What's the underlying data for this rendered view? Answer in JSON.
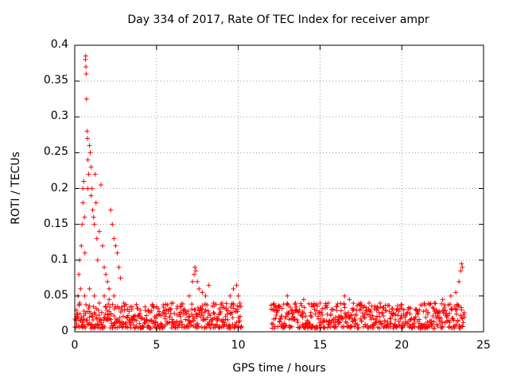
{
  "chart_data": {
    "type": "scatter",
    "title": "Day 334 of 2017, Rate Of TEC Index for receiver ampr",
    "xlabel": "GPS time / hours",
    "ylabel": "ROTI / TECUs",
    "xlim": [
      0,
      25
    ],
    "ylim": [
      0,
      0.4
    ],
    "xticks": [
      "0",
      "5",
      "10",
      "15",
      "20",
      "25"
    ],
    "yticks": [
      "0",
      "0.05",
      "0.1",
      "0.15",
      "0.2",
      "0.25",
      "0.3",
      "0.35",
      "0.4"
    ],
    "grid": true,
    "marker": "plus",
    "color": "#ff0000",
    "series": [
      {
        "points": [
          [
            0.1,
            0.03
          ],
          [
            0.2,
            0.05
          ],
          [
            0.25,
            0.08
          ],
          [
            0.3,
            0.1
          ],
          [
            0.35,
            0.06
          ],
          [
            0.4,
            0.12
          ],
          [
            0.45,
            0.15
          ],
          [
            0.5,
            0.2
          ],
          [
            0.5,
            0.18
          ],
          [
            0.55,
            0.21
          ],
          [
            0.6,
            0.16
          ],
          [
            0.62,
            0.11
          ],
          [
            0.65,
            0.38
          ],
          [
            0.67,
            0.385
          ],
          [
            0.68,
            0.37
          ],
          [
            0.7,
            0.36
          ],
          [
            0.72,
            0.325
          ],
          [
            0.75,
            0.28
          ],
          [
            0.78,
            0.27
          ],
          [
            0.8,
            0.24
          ],
          [
            0.8,
            0.2
          ],
          [
            0.85,
            0.22
          ],
          [
            0.9,
            0.26
          ],
          [
            0.95,
            0.25
          ],
          [
            1.0,
            0.23
          ],
          [
            1.0,
            0.19
          ],
          [
            1.05,
            0.2
          ],
          [
            1.1,
            0.17
          ],
          [
            1.15,
            0.16
          ],
          [
            1.2,
            0.15
          ],
          [
            1.25,
            0.22
          ],
          [
            1.3,
            0.18
          ],
          [
            1.35,
            0.13
          ],
          [
            1.4,
            0.1
          ],
          [
            1.5,
            0.14
          ],
          [
            1.6,
            0.205
          ],
          [
            1.7,
            0.12
          ],
          [
            1.8,
            0.09
          ],
          [
            1.9,
            0.08
          ],
          [
            2.0,
            0.07
          ],
          [
            2.1,
            0.06
          ],
          [
            2.2,
            0.17
          ],
          [
            2.3,
            0.15
          ],
          [
            2.4,
            0.13
          ],
          [
            2.5,
            0.12
          ],
          [
            2.6,
            0.11
          ],
          [
            2.7,
            0.09
          ],
          [
            2.8,
            0.075
          ],
          [
            0.3,
            0.04
          ],
          [
            0.6,
            0.05
          ],
          [
            0.9,
            0.06
          ],
          [
            1.2,
            0.05
          ],
          [
            1.5,
            0.04
          ],
          [
            1.8,
            0.05
          ],
          [
            2.1,
            0.045
          ],
          [
            2.4,
            0.05
          ],
          [
            3.0,
            0.04
          ],
          [
            3.5,
            0.035
          ],
          [
            4.0,
            0.03
          ],
          [
            4.5,
            0.03
          ],
          [
            5.0,
            0.035
          ],
          [
            5.5,
            0.03
          ],
          [
            6.0,
            0.04
          ],
          [
            6.5,
            0.035
          ],
          [
            7.0,
            0.05
          ],
          [
            7.2,
            0.07
          ],
          [
            7.3,
            0.08
          ],
          [
            7.35,
            0.09
          ],
          [
            7.4,
            0.085
          ],
          [
            7.5,
            0.07
          ],
          [
            7.6,
            0.06
          ],
          [
            7.8,
            0.055
          ],
          [
            8.0,
            0.05
          ],
          [
            8.2,
            0.065
          ],
          [
            8.5,
            0.04
          ],
          [
            9.0,
            0.04
          ],
          [
            9.5,
            0.05
          ],
          [
            9.7,
            0.06
          ],
          [
            9.9,
            0.065
          ],
          [
            10.0,
            0.05
          ],
          [
            10.1,
            0.04
          ],
          [
            12.2,
            0.03
          ],
          [
            12.5,
            0.035
          ],
          [
            13.0,
            0.05
          ],
          [
            13.5,
            0.04
          ],
          [
            14.0,
            0.045
          ],
          [
            14.5,
            0.035
          ],
          [
            15.0,
            0.04
          ],
          [
            15.5,
            0.04
          ],
          [
            16.0,
            0.035
          ],
          [
            16.5,
            0.05
          ],
          [
            16.8,
            0.045
          ],
          [
            17.0,
            0.03
          ],
          [
            17.5,
            0.04
          ],
          [
            18.0,
            0.04
          ],
          [
            18.5,
            0.035
          ],
          [
            19.0,
            0.03
          ],
          [
            19.5,
            0.025
          ],
          [
            20.0,
            0.02
          ],
          [
            20.5,
            0.025
          ],
          [
            21.0,
            0.025
          ],
          [
            21.5,
            0.03
          ],
          [
            22.0,
            0.04
          ],
          [
            22.5,
            0.045
          ],
          [
            23.0,
            0.05
          ],
          [
            23.3,
            0.055
          ],
          [
            23.5,
            0.07
          ],
          [
            23.6,
            0.085
          ],
          [
            23.65,
            0.095
          ],
          [
            23.7,
            0.09
          ]
        ],
        "baseline_band": {
          "x_ranges": [
            [
              0,
              10.2
            ],
            [
              12.0,
              23.8
            ]
          ],
          "y_range": [
            0.005,
            0.04
          ]
        }
      }
    ]
  }
}
